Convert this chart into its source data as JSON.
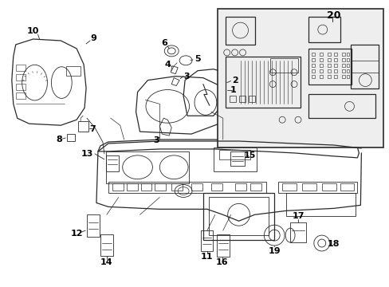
{
  "bg_color": "#ffffff",
  "line_color": "#2a2a2a",
  "label_color": "#000000",
  "fig_w": 4.89,
  "fig_h": 3.6,
  "dpi": 100
}
